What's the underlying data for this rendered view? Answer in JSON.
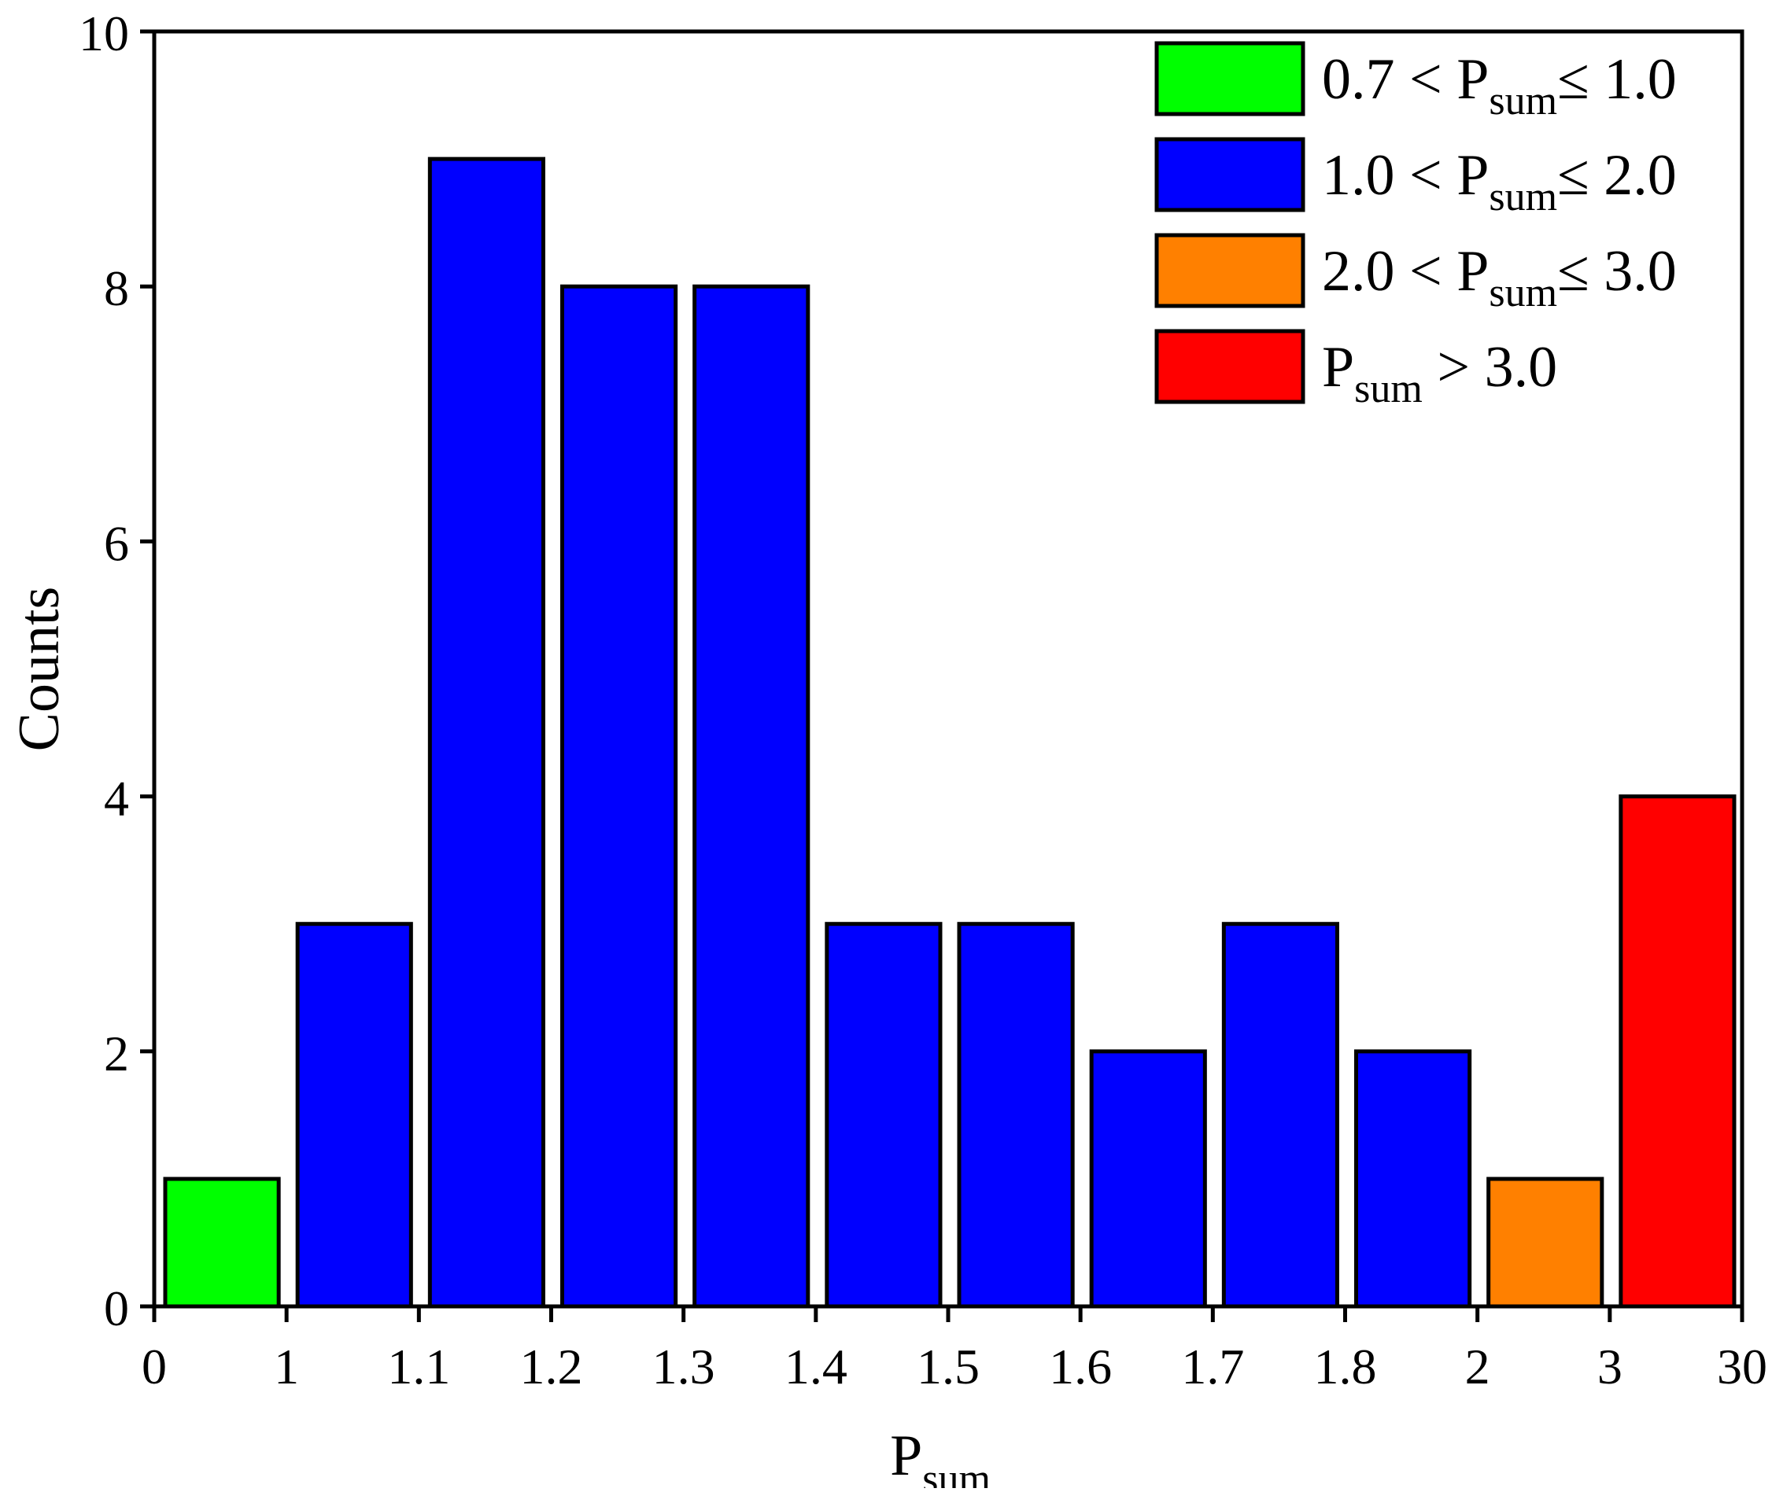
{
  "chart_data": {
    "type": "bar",
    "xlabel": {
      "main": "P",
      "sub": "sum"
    },
    "ylabel": "Counts",
    "ylim": [
      0,
      10
    ],
    "yticks": [
      "0",
      "2",
      "4",
      "6",
      "8",
      "10"
    ],
    "xticks": [
      "0",
      "1",
      "1.1",
      "1.2",
      "1.3",
      "1.4",
      "1.5",
      "1.6",
      "1.7",
      "1.8",
      "2",
      "3",
      "30"
    ],
    "bins": [
      {
        "from": "0",
        "to": "1",
        "value": 1,
        "group": 0
      },
      {
        "from": "1",
        "to": "1.1",
        "value": 3,
        "group": 1
      },
      {
        "from": "1.1",
        "to": "1.2",
        "value": 9,
        "group": 1
      },
      {
        "from": "1.2",
        "to": "1.3",
        "value": 8,
        "group": 1
      },
      {
        "from": "1.3",
        "to": "1.4",
        "value": 8,
        "group": 1
      },
      {
        "from": "1.4",
        "to": "1.5",
        "value": 3,
        "group": 1
      },
      {
        "from": "1.5",
        "to": "1.6",
        "value": 3,
        "group": 1
      },
      {
        "from": "1.6",
        "to": "1.7",
        "value": 2,
        "group": 1
      },
      {
        "from": "1.7",
        "to": "1.8",
        "value": 3,
        "group": 1
      },
      {
        "from": "1.8",
        "to": "2",
        "value": 2,
        "group": 1
      },
      {
        "from": "2",
        "to": "3",
        "value": 1,
        "group": 2
      },
      {
        "from": "3",
        "to": "30",
        "value": 4,
        "group": 3
      }
    ],
    "legend": {
      "position": "top-right",
      "entries": [
        {
          "pre": "0.7 < P",
          "sub": "sum",
          "post": "≤ 1.0",
          "color": "#00ff00"
        },
        {
          "pre": "1.0 < P",
          "sub": "sum",
          "post": "≤ 2.0",
          "color": "#0000ff"
        },
        {
          "pre": "2.0 < P",
          "sub": "sum",
          "post": "≤ 3.0",
          "color": "#ff8000"
        },
        {
          "pre": "P",
          "sub": "sum",
          "post": " > 3.0",
          "color": "#ff0000"
        }
      ]
    },
    "grid": false
  }
}
